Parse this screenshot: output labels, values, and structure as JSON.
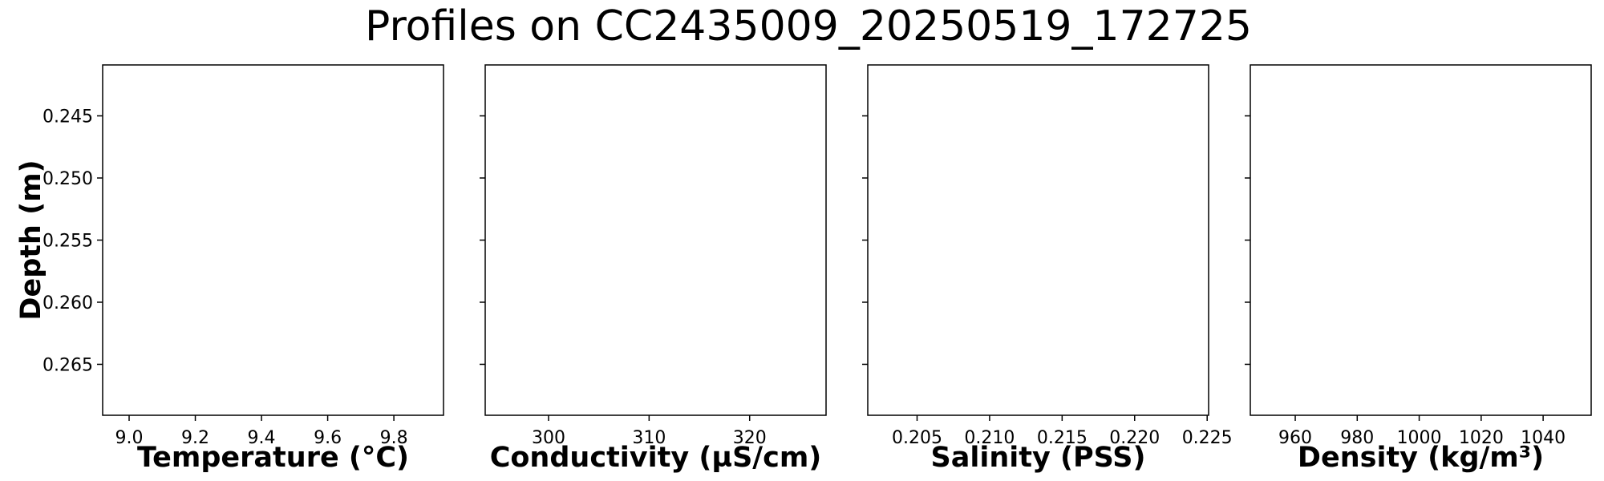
{
  "figure": {
    "title": "Profiles on CC2435009_20250519_172725"
  },
  "chart_data": [
    {
      "type": "line",
      "xlabel": "Temperature (°C)",
      "ylabel": "Depth (m)",
      "xlim": [
        8.92,
        9.95
      ],
      "ylim": [
        0.2691,
        0.2409
      ],
      "y_inverted": true,
      "x_ticks": [
        9.0,
        9.2,
        9.4,
        9.6,
        9.8
      ],
      "x_tick_labels": [
        "9.0",
        "9.2",
        "9.4",
        "9.6",
        "9.8"
      ],
      "y_ticks": [
        0.245,
        0.25,
        0.255,
        0.26,
        0.265
      ],
      "y_tick_labels": [
        "0.245",
        "0.250",
        "0.255",
        "0.260",
        "0.265"
      ],
      "series": []
    },
    {
      "type": "line",
      "xlabel": "Conductivity (µS/cm)",
      "ylabel": "",
      "xlim": [
        293.7,
        327.6
      ],
      "ylim": [
        0.2691,
        0.2409
      ],
      "y_inverted": true,
      "x_ticks": [
        300,
        310,
        320
      ],
      "x_tick_labels": [
        "300",
        "310",
        "320"
      ],
      "y_ticks": [
        0.245,
        0.25,
        0.255,
        0.26,
        0.265
      ],
      "y_tick_labels": [],
      "series": []
    },
    {
      "type": "line",
      "xlabel": "Salinity (PSS)",
      "ylabel": "",
      "xlim": [
        0.2016,
        0.2251
      ],
      "ylim": [
        0.2691,
        0.2409
      ],
      "y_inverted": true,
      "x_ticks": [
        0.205,
        0.21,
        0.215,
        0.22,
        0.225
      ],
      "x_tick_labels": [
        "0.205",
        "0.210",
        "0.215",
        "0.220",
        "0.225"
      ],
      "y_ticks": [
        0.245,
        0.25,
        0.255,
        0.26,
        0.265
      ],
      "y_tick_labels": [],
      "series": []
    },
    {
      "type": "line",
      "xlabel": "Density (kg/m³)",
      "ylabel": "",
      "xlim": [
        945.5,
        1055.5
      ],
      "ylim": [
        0.2691,
        0.2409
      ],
      "y_inverted": true,
      "x_ticks": [
        960,
        980,
        1000,
        1020,
        1040
      ],
      "x_tick_labels": [
        "960",
        "980",
        "1000",
        "1020",
        "1040"
      ],
      "y_ticks": [
        0.245,
        0.25,
        0.255,
        0.26,
        0.265
      ],
      "y_tick_labels": [],
      "series": []
    }
  ]
}
